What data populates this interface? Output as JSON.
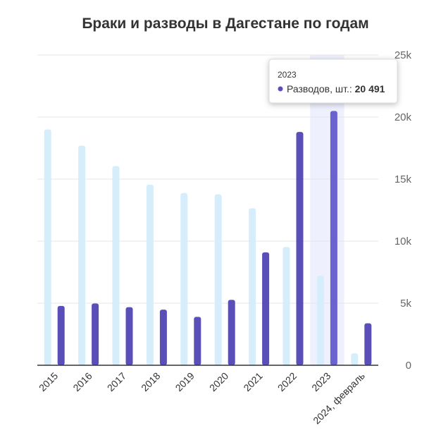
{
  "chart_data": {
    "type": "bar",
    "title": "Браки и разводы в Дагестане по годам",
    "categories": [
      "2015",
      "2016",
      "2017",
      "2018",
      "2019",
      "2020",
      "2021",
      "2022",
      "2023",
      "2024, февраль"
    ],
    "series": [
      {
        "values": [
          19000,
          17700,
          16050,
          14550,
          13880,
          13770,
          12650,
          9530,
          7200,
          960
        ],
        "color": "#d6eefb"
      },
      {
        "name": "Разводов, шт.",
        "values": [
          4780,
          4980,
          4680,
          4480,
          3900,
          5270,
          9100,
          18800,
          20491,
          3380
        ],
        "color": "#5a4fb8"
      }
    ],
    "y_ticks": [
      "0",
      "5k",
      "10k",
      "15k",
      "20k",
      "25k"
    ],
    "ylim": [
      0,
      25000
    ],
    "y_axis_side": "right",
    "grid": true,
    "highlighted_category": "2023",
    "tooltip": {
      "header": "2023",
      "series_label": "Разводов, шт.",
      "value": "20 491"
    }
  }
}
